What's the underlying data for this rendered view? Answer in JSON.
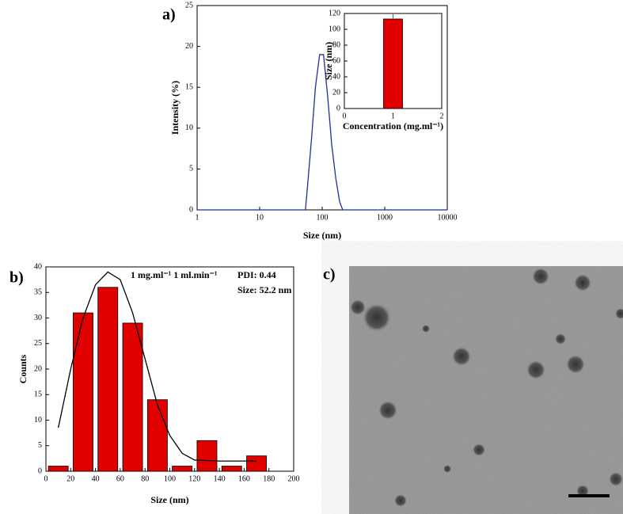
{
  "chart_data": [
    {
      "type": "line",
      "panel_label": "a)",
      "xlabel": "Size (nm)",
      "ylabel": "Intensity (%)",
      "x": [
        1,
        54,
        60,
        68,
        78,
        91,
        105,
        122,
        142,
        164,
        190,
        213,
        10000
      ],
      "values": [
        0,
        0,
        4,
        9,
        15,
        19,
        19,
        14,
        8,
        4,
        1,
        0,
        0
      ],
      "color": "#1f2f9e",
      "xscale": "log",
      "xlim": [
        1,
        10000
      ],
      "xticks": [
        1,
        10,
        100,
        1000,
        10000
      ],
      "ylim": [
        0,
        25
      ],
      "yticks": [
        0,
        5,
        10,
        15,
        20,
        25
      ]
    },
    {
      "type": "bar",
      "xlabel": "Concentration (mg.ml⁻¹)",
      "ylabel": "Size (nm)",
      "x": [
        1
      ],
      "values": [
        113
      ],
      "errors": [
        7
      ],
      "color": "#e00000",
      "xlim": [
        0,
        2
      ],
      "xticks": [
        0,
        1,
        2
      ],
      "ylim": [
        0,
        120
      ],
      "yticks": [
        0,
        20,
        40,
        60,
        80,
        100,
        120
      ]
    },
    {
      "type": "bar",
      "panel_label": "b)",
      "xlabel": "Size (nm)",
      "ylabel": "Counts",
      "x": [
        10,
        30,
        50,
        70,
        90,
        110,
        130,
        150,
        170
      ],
      "values": [
        1,
        31,
        36,
        29,
        14,
        1,
        6,
        1,
        3
      ],
      "color": "#e00000",
      "fit": {
        "x": [
          10,
          20,
          30,
          40,
          50,
          60,
          70,
          80,
          90,
          100,
          110,
          120,
          140,
          170
        ],
        "values": [
          8.5,
          20,
          30,
          36.5,
          39,
          37.5,
          31,
          22,
          13,
          7,
          3.5,
          2.2,
          2,
          2
        ]
      },
      "annotations": [
        "1 mg.ml⁻¹  1 ml.min⁻¹",
        "PDI: 0.44",
        "Size: 52.2 nm"
      ],
      "xlim": [
        0,
        200
      ],
      "xticks": [
        0,
        20,
        40,
        60,
        80,
        100,
        120,
        140,
        160,
        180,
        200
      ],
      "ylim": [
        0,
        40
      ],
      "yticks": [
        0,
        5,
        10,
        15,
        20,
        25,
        30,
        35,
        40
      ]
    }
  ],
  "image": {
    "panel_label": "c)"
  }
}
